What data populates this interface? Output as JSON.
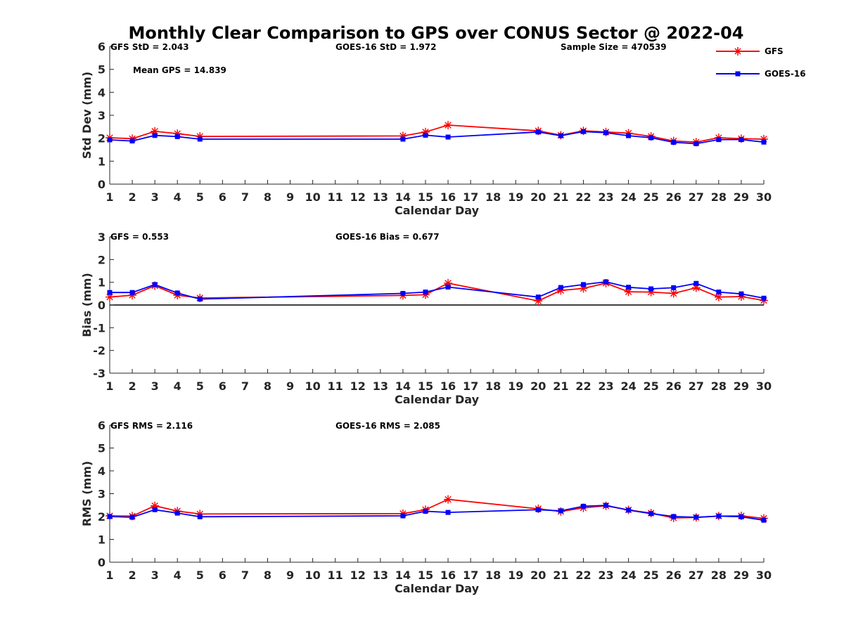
{
  "figure": {
    "title": "Monthly Clear Comparison to GPS over CONUS Sector @ 2022-04"
  },
  "legend": {
    "position": "top-right",
    "items": [
      {
        "label": "GFS",
        "color": "#ff0000",
        "marker": "asterisk"
      },
      {
        "label": "GOES-16",
        "color": "#0000ff",
        "marker": "square"
      }
    ]
  },
  "annotations": {
    "std": [
      "GFS StD = 2.043",
      "GOES-16 StD = 1.972",
      "Sample Size = 470539",
      "Mean GPS = 14.839"
    ],
    "bias": [
      "GFS = 0.553",
      "GOES-16 Bias = 0.677"
    ],
    "rms": [
      "GFS RMS = 2.116",
      "GOES-16 RMS = 2.085"
    ]
  },
  "chart_data": [
    {
      "type": "line",
      "ylabel": "Std Dev (mm)",
      "xlabel": "Calendar Day",
      "xlim": [
        1,
        30
      ],
      "ylim": [
        0,
        6
      ],
      "xticks": [
        1,
        2,
        3,
        4,
        5,
        6,
        7,
        8,
        9,
        10,
        11,
        12,
        13,
        14,
        15,
        16,
        17,
        18,
        19,
        20,
        21,
        22,
        23,
        24,
        25,
        26,
        27,
        28,
        29,
        30
      ],
      "yticks": [
        0,
        1,
        2,
        3,
        4,
        5,
        6
      ],
      "x": [
        1,
        2,
        3,
        4,
        5,
        14,
        15,
        16,
        20,
        21,
        22,
        23,
        24,
        25,
        26,
        27,
        28,
        29,
        30
      ],
      "series": [
        {
          "name": "GFS",
          "color": "#ff0000",
          "values": [
            2.02,
            1.98,
            2.3,
            2.2,
            2.08,
            2.1,
            2.27,
            2.57,
            2.32,
            2.13,
            2.32,
            2.27,
            2.22,
            2.08,
            1.88,
            1.83,
            2.02,
            1.98,
            1.96
          ]
        },
        {
          "name": "GOES-16",
          "color": "#0000ff",
          "values": [
            1.93,
            1.88,
            2.12,
            2.07,
            1.96,
            1.96,
            2.13,
            2.05,
            2.27,
            2.11,
            2.29,
            2.24,
            2.11,
            2.02,
            1.82,
            1.76,
            1.94,
            1.94,
            1.83
          ]
        }
      ]
    },
    {
      "type": "line",
      "ylabel": "Bias (mm)",
      "xlabel": "Calendar Day",
      "xlim": [
        1,
        30
      ],
      "ylim": [
        -3,
        3
      ],
      "xticks": [
        1,
        2,
        3,
        4,
        5,
        6,
        7,
        8,
        9,
        10,
        11,
        12,
        13,
        14,
        15,
        16,
        17,
        18,
        19,
        20,
        21,
        22,
        23,
        24,
        25,
        26,
        27,
        28,
        29,
        30
      ],
      "yticks": [
        -3,
        -2,
        -1,
        0,
        1,
        2,
        3
      ],
      "zero_line": true,
      "x": [
        1,
        2,
        3,
        4,
        5,
        14,
        15,
        16,
        20,
        21,
        22,
        23,
        24,
        25,
        26,
        27,
        28,
        29,
        30
      ],
      "series": [
        {
          "name": "GFS",
          "color": "#ff0000",
          "values": [
            0.35,
            0.43,
            0.85,
            0.43,
            0.31,
            0.42,
            0.45,
            0.96,
            0.18,
            0.64,
            0.73,
            0.96,
            0.58,
            0.57,
            0.51,
            0.76,
            0.35,
            0.37,
            0.2
          ]
        },
        {
          "name": "GOES-16",
          "color": "#0000ff",
          "values": [
            0.55,
            0.55,
            0.9,
            0.53,
            0.26,
            0.51,
            0.57,
            0.79,
            0.35,
            0.77,
            0.9,
            1.02,
            0.78,
            0.71,
            0.76,
            0.95,
            0.57,
            0.49,
            0.3
          ]
        }
      ]
    },
    {
      "type": "line",
      "ylabel": "RMS (mm)",
      "xlabel": "Calendar Day",
      "xlim": [
        1,
        30
      ],
      "ylim": [
        0,
        6
      ],
      "xticks": [
        1,
        2,
        3,
        4,
        5,
        6,
        7,
        8,
        9,
        10,
        11,
        12,
        13,
        14,
        15,
        16,
        17,
        18,
        19,
        20,
        21,
        22,
        23,
        24,
        25,
        26,
        27,
        28,
        29,
        30
      ],
      "yticks": [
        0,
        1,
        2,
        3,
        4,
        5,
        6
      ],
      "x": [
        1,
        2,
        3,
        4,
        5,
        14,
        15,
        16,
        20,
        21,
        22,
        23,
        24,
        25,
        26,
        27,
        28,
        29,
        30
      ],
      "series": [
        {
          "name": "GFS",
          "color": "#ff0000",
          "values": [
            2.03,
            2.02,
            2.47,
            2.24,
            2.11,
            2.13,
            2.3,
            2.75,
            2.34,
            2.22,
            2.38,
            2.47,
            2.29,
            2.15,
            1.94,
            1.96,
            2.02,
            2.03,
            1.92
          ]
        },
        {
          "name": "GOES-16",
          "color": "#0000ff",
          "values": [
            2.0,
            1.97,
            2.3,
            2.15,
            1.99,
            2.03,
            2.23,
            2.18,
            2.3,
            2.25,
            2.45,
            2.49,
            2.28,
            2.13,
            2.0,
            1.97,
            2.02,
            1.99,
            1.84
          ]
        }
      ]
    }
  ]
}
